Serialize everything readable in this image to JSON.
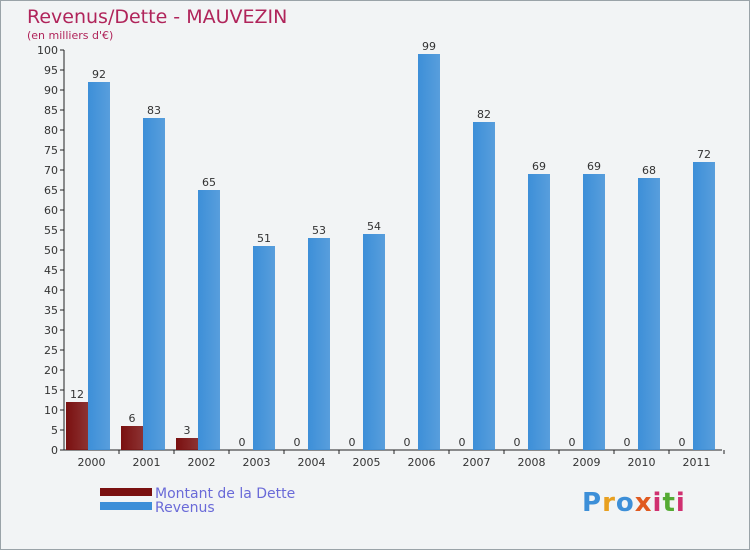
{
  "chart_data": {
    "type": "bar",
    "title": "Revenus/Dette - MAUVEZIN",
    "subtitle": "(en milliers d'€)",
    "categories": [
      "2000",
      "2001",
      "2002",
      "2003",
      "2004",
      "2005",
      "2006",
      "2007",
      "2008",
      "2009",
      "2010",
      "2011"
    ],
    "series": [
      {
        "name": "Montant de la Dette",
        "color": "#7a1010",
        "values": [
          12,
          6,
          3,
          0,
          0,
          0,
          0,
          0,
          0,
          0,
          0,
          0
        ]
      },
      {
        "name": "Revenus",
        "color": "#3d8fd8",
        "values": [
          92,
          83,
          65,
          51,
          53,
          54,
          99,
          82,
          69,
          69,
          68,
          72
        ]
      }
    ],
    "ylim": [
      0,
      100
    ],
    "ytick_step": 5,
    "grid": false,
    "legend": "bottom-left",
    "xlabel": "",
    "ylabel": ""
  },
  "branding": {
    "logo_text": "Proxiti"
  }
}
